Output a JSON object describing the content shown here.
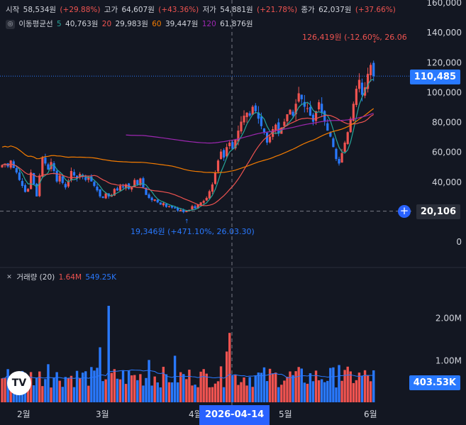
{
  "header": {
    "open_label": "시작",
    "open_value": "58,534원",
    "open_change": "(+29.88%)",
    "high_label": "고가",
    "high_value": "64,607원",
    "high_change": "(+43.36%)",
    "low_label": "저가",
    "low_value": "54,881원",
    "low_change": "(+21.78%)",
    "close_label": "종가",
    "close_value": "62,037원",
    "close_change": "(+37.66%)",
    "ma_icon": "eye-icon",
    "ma_label": "이동평균선",
    "ma5_period": "5",
    "ma5_value": "40,763원",
    "ma20_period": "20",
    "ma20_value": "29,983원",
    "ma60_period": "60",
    "ma60_value": "39,447원",
    "ma120_period": "120",
    "ma120_value": "61,876원"
  },
  "volume_header": {
    "label": "거래량 (20)",
    "vol_value": "1.64M",
    "vol_ma_value": "549.25K"
  },
  "price_axis": {
    "ticks": [
      "160,000",
      "140,000",
      "120,000",
      "100,000",
      "80,000",
      "60,000",
      "40,000",
      "0"
    ],
    "tick_values": [
      160000,
      140000,
      120000,
      100000,
      80000,
      60000,
      40000,
      0
    ],
    "last_price_tag": "110,485",
    "crosshair_tag": "20,106"
  },
  "volume_axis": {
    "ticks": [
      "2.00M",
      "1.00M"
    ],
    "tick_values": [
      2000000,
      1000000
    ],
    "vol_ma_tag": "403.53K"
  },
  "time_axis": {
    "labels": [
      "2월",
      "3월",
      "4월",
      "5월",
      "6월"
    ],
    "crosshair_date": "2026-04-14"
  },
  "annotations": {
    "high": "126,419원 (-12.60%, 26.06",
    "low": "19,346원 (+471.10%, 26.03.30)"
  },
  "logo_text": "TV",
  "colors": {
    "up": "#ef5350",
    "down": "#2979ff",
    "ma5": "#26a69a",
    "ma20": "#ef5350",
    "ma60": "#f57c00",
    "ma120": "#9c27b0",
    "bg": "#131722"
  },
  "chart_data": {
    "type": "candlestick",
    "price_range": [
      0,
      160000
    ],
    "closes": [
      51000,
      52000,
      50000,
      54000,
      49000,
      46000,
      41000,
      37000,
      33000,
      35000,
      46000,
      38000,
      30000,
      44000,
      56000,
      52000,
      48000,
      53000,
      47000,
      40000,
      44000,
      39000,
      36000,
      40000,
      47000,
      44000,
      42000,
      45000,
      43000,
      41000,
      43000,
      40000,
      37000,
      34000,
      30000,
      29000,
      32000,
      30000,
      31000,
      35000,
      34000,
      37000,
      36000,
      38000,
      35000,
      36000,
      41000,
      38000,
      42000,
      36000,
      31000,
      29000,
      27500,
      28000,
      26000,
      24500,
      25500,
      23000,
      23500,
      22500,
      22000,
      20500,
      21000,
      19500,
      20106,
      21000,
      23500,
      22000,
      24500,
      26000,
      27000,
      29000,
      33500,
      38000,
      46000,
      54000,
      60000,
      56000,
      63000,
      66000,
      62000,
      68000,
      74000,
      80000,
      84000,
      86000,
      84000,
      90000,
      87000,
      82000,
      77000,
      73000,
      66000,
      70000,
      75000,
      78000,
      72000,
      76000,
      80000,
      85000,
      88000,
      84000,
      92000,
      99000,
      95000,
      90000,
      89000,
      84000,
      80000,
      87000,
      93000,
      86000,
      80000,
      74000,
      70000,
      63000,
      55000,
      52000,
      59000,
      66000,
      73000,
      82000,
      92000,
      102000,
      108000,
      98000,
      103000,
      112000,
      118000,
      110485
    ],
    "volume_range": [
      0,
      2800000
    ],
    "volume_note": "per-bar volumes rendered, peaks ≈2.28M (Mar) and ≈1.64M (Apr)"
  }
}
